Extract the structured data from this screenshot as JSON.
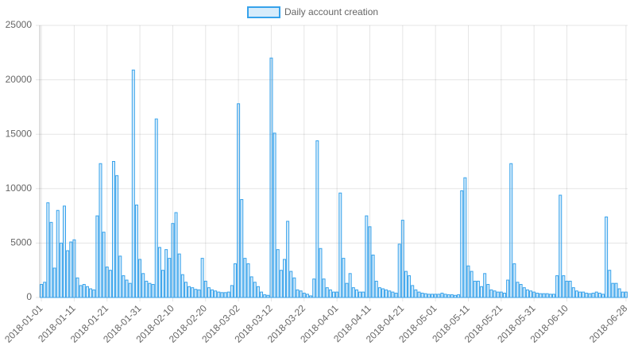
{
  "chart_data": {
    "type": "bar",
    "series": [
      {
        "name": "Daily account creation",
        "color": "#36a2eb",
        "fill": "rgba(54,162,235,0.2)",
        "values": [
          1200,
          1400,
          8700,
          6900,
          2700,
          8000,
          5000,
          8400,
          4300,
          5100,
          5300,
          1800,
          1100,
          1200,
          1000,
          800,
          700,
          7500,
          12300,
          6000,
          2800,
          2500,
          12500,
          11200,
          3800,
          2000,
          1600,
          1300,
          20900,
          8500,
          3500,
          2200,
          1500,
          1300,
          1200,
          16400,
          4600,
          2500,
          4400,
          3600,
          6800,
          7800,
          4000,
          2100,
          1400,
          1000,
          900,
          750,
          700,
          3600,
          1500,
          900,
          700,
          600,
          500,
          450,
          450,
          500,
          1100,
          3100,
          17800,
          9000,
          3600,
          3100,
          1900,
          1400,
          1000,
          500,
          250,
          200,
          22000,
          15100,
          4400,
          2500,
          3500,
          7000,
          2400,
          1800,
          700,
          600,
          400,
          300,
          150,
          1700,
          14400,
          4500,
          1700,
          900,
          700,
          500,
          500,
          9600,
          3600,
          1300,
          2200,
          900,
          700,
          500,
          500,
          7500,
          6500,
          3900,
          1500,
          900,
          800,
          700,
          600,
          500,
          400,
          4900,
          7100,
          2400,
          2000,
          1100,
          700,
          500,
          400,
          350,
          300,
          300,
          300,
          300,
          400,
          300,
          250,
          250,
          200,
          250,
          9800,
          11000,
          2900,
          2400,
          1500,
          1500,
          1000,
          2200,
          1200,
          700,
          600,
          500,
          500,
          400,
          1600,
          12300,
          3100,
          1400,
          1200,
          900,
          700,
          600,
          500,
          400,
          350,
          350,
          350,
          300,
          300,
          2000,
          9400,
          2000,
          1500,
          1500,
          900,
          600,
          500,
          500,
          400,
          350,
          400,
          500,
          400,
          300,
          7400,
          2500,
          1300,
          1300,
          800,
          500,
          500
        ]
      }
    ],
    "categories": [
      "2018-01-01",
      null,
      null,
      null,
      null,
      null,
      null,
      null,
      null,
      null,
      "2018-01-11",
      null,
      null,
      null,
      null,
      null,
      null,
      null,
      null,
      null,
      "2018-01-21",
      null,
      null,
      null,
      null,
      null,
      null,
      null,
      null,
      null,
      "2018-01-31",
      null,
      null,
      null,
      null,
      null,
      null,
      null,
      null,
      null,
      "2018-02-10",
      null,
      null,
      null,
      null,
      null,
      null,
      null,
      null,
      null,
      "2018-02-20",
      null,
      null,
      null,
      null,
      null,
      null,
      null,
      null,
      null,
      "2018-03-02",
      null,
      null,
      null,
      null,
      null,
      null,
      null,
      null,
      null,
      "2018-03-12",
      null,
      null,
      null,
      null,
      null,
      null,
      null,
      null,
      null,
      "2018-03-22",
      null,
      null,
      null,
      null,
      null,
      null,
      null,
      null,
      null,
      "2018-04-01",
      null,
      null,
      null,
      null,
      null,
      null,
      null,
      null,
      null,
      "2018-04-11",
      null,
      null,
      null,
      null,
      null,
      null,
      null,
      null,
      null,
      "2018-04-21",
      null,
      null,
      null,
      null,
      null,
      null,
      null,
      null,
      null,
      "2018-05-01",
      null,
      null,
      null,
      null,
      null,
      null,
      null,
      null,
      null,
      "2018-05-11",
      null,
      null,
      null,
      null,
      null,
      null,
      null,
      null,
      null,
      "2018-05-21",
      null,
      null,
      null,
      null,
      null,
      null,
      null,
      null,
      null,
      "2018-05-31",
      null,
      null,
      null,
      null,
      null,
      null,
      null,
      null,
      null,
      "2018-06-10",
      null,
      null,
      null,
      null,
      null,
      null,
      null,
      null,
      null,
      null,
      null,
      null,
      null,
      null,
      null,
      null,
      null,
      "2018-06-28"
    ],
    "ylim": [
      0,
      25000
    ],
    "yticks": [
      0,
      5000,
      10000,
      15000,
      20000,
      25000
    ],
    "grid": true,
    "legend": "top"
  }
}
